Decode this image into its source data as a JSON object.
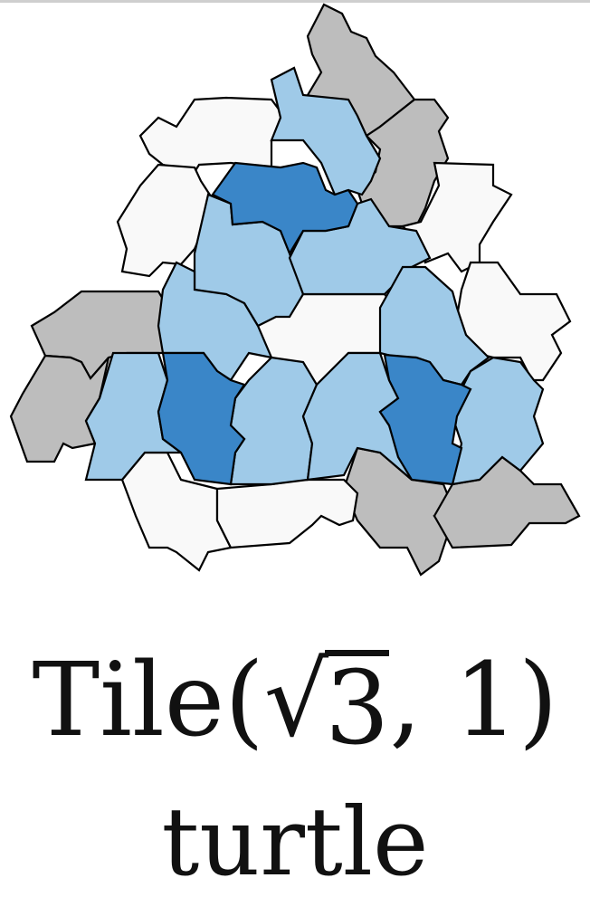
{
  "figure": {
    "colors": {
      "white_tile": "#f9f9f9",
      "light_blue_tile": "#9fcae8",
      "dark_blue_tile": "#3a86c8",
      "gray_tile": "#bdbdbd",
      "outline": "#000000"
    }
  },
  "caption": {
    "title_prefix": "Tile(",
    "title_sqrt_symbol": "√",
    "title_radicand": "3",
    "title_suffix": ", 1)",
    "subtitle": "turtle"
  }
}
